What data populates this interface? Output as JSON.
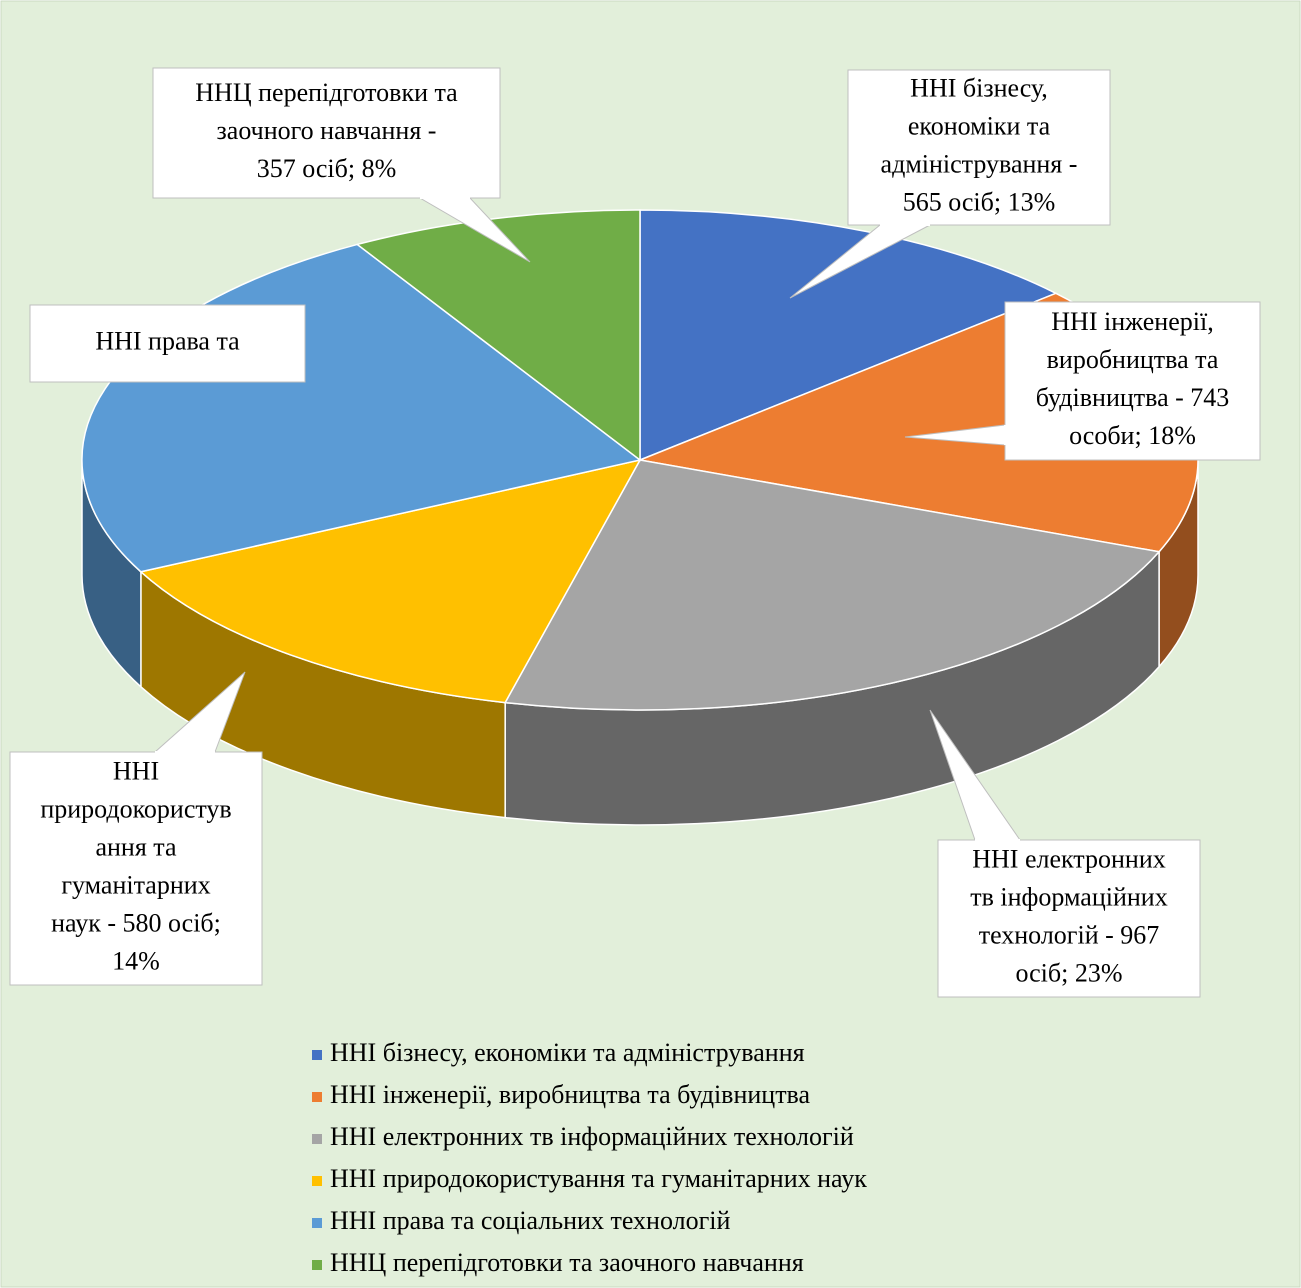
{
  "chart_data": {
    "type": "pie3d",
    "categories": [
      "ННІ бізнесу, економіки та адміністрування",
      "ННІ інженерії, виробництва та будівництва",
      "ННІ електронних тв інформаційних технологій",
      "ННІ природокористування та гуманітарних наук",
      "ННІ права та соціальних технологій",
      "ННЦ перепідготовки та заочного навчання"
    ],
    "values": [
      565,
      743,
      967,
      580,
      1010,
      357
    ],
    "value_labels": [
      [
        "ННІ бізнесу,",
        "економіки та",
        "адміністрування -",
        "565 осіб; 13%"
      ],
      [
        "ННІ інженерії,",
        "виробництва та",
        "будівництва - 743",
        "особи; 18%"
      ],
      [
        "ННІ електронних",
        "тв інформаційних",
        "технологій - 967",
        "осіб; 23%"
      ],
      [
        "ННІ",
        "природокористув",
        "ання та",
        "гуманітарних",
        "наук - 580 осіб;",
        "14%"
      ],
      [
        "ННІ права та"
      ],
      [
        "ННЦ перепідготовки та",
        "заочного навчання -",
        "357 осіб; 8%"
      ]
    ],
    "colors": [
      "#4472c4",
      "#ed7d31",
      "#a5a5a5",
      "#ffc000",
      "#5b9bd5",
      "#70ad47"
    ],
    "legend": "bottom"
  }
}
